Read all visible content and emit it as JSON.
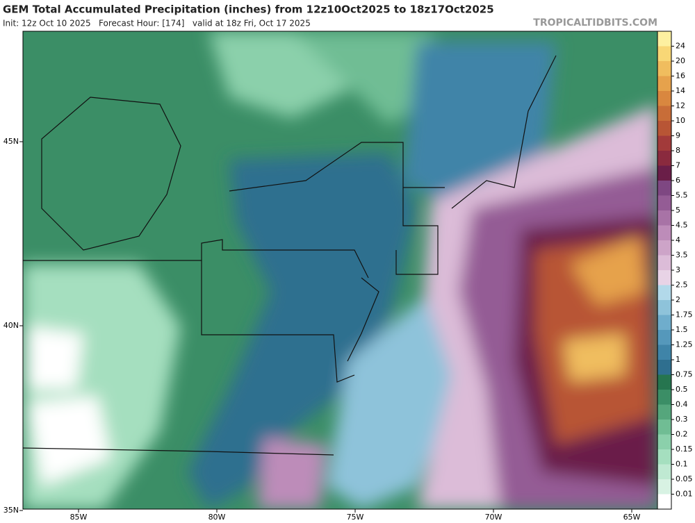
{
  "header": {
    "title": "GEM Total Accumulated Precipitation (inches) from 12z10Oct2025 to 18z17Oct2025",
    "subtitle": "Init: 12z Oct 10 2025   Forecast Hour: [174]   valid at 18z Fri, Oct 17 2025",
    "brand": "TROPICALTIDBITS.COM"
  },
  "map": {
    "lat_labels": [
      "45N",
      "40N",
      "35N"
    ],
    "lon_labels": [
      "85W",
      "80W",
      "75W",
      "70W",
      "65W"
    ]
  },
  "legend": {
    "labels": [
      "0.01",
      "0.05",
      "0.1",
      "0.15",
      "0.2",
      "0.3",
      "0.4",
      "0.5",
      "0.75",
      "1",
      "1.25",
      "1.5",
      "1.75",
      "2",
      "2.5",
      "3",
      "3.5",
      "4",
      "4.5",
      "5",
      "5.5",
      "6",
      "7",
      "8",
      "9",
      "10",
      "12",
      "14",
      "16",
      "20",
      "24"
    ],
    "colors": [
      "#ffffff",
      "#d8f2e3",
      "#bfe9d2",
      "#a5dfbf",
      "#8bd0ab",
      "#70bd94",
      "#55a67c",
      "#3b8e66",
      "#26754f",
      "#2f6f8f",
      "#3f84a8",
      "#5598bb",
      "#6fadcc",
      "#8ec3da",
      "#b2d9ea",
      "#e8d3e6",
      "#dcbcd8",
      "#cda4c8",
      "#bd8cb9",
      "#a873a6",
      "#945c95",
      "#7e4782",
      "#6a1e48",
      "#8a2a3e",
      "#a23a3a",
      "#b85535",
      "#c86d38",
      "#d9873f",
      "#e6a24c",
      "#f0bd5e",
      "#f8d776",
      "#fdf0a0"
    ]
  }
}
